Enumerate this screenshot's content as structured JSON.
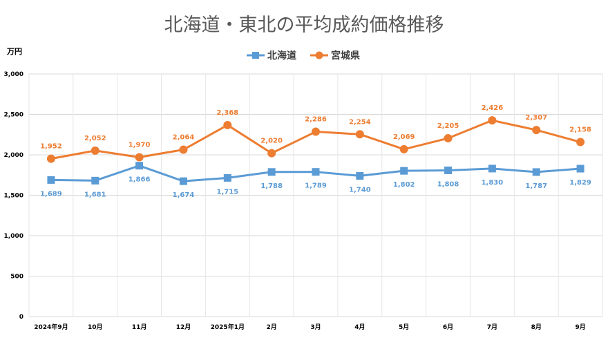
{
  "chart_data": {
    "type": "line",
    "title": "北海道・東北の平均成約価格推移",
    "ylabel": "万円",
    "xlabel": "",
    "ylim": [
      0,
      3000
    ],
    "yticks": [
      0,
      500,
      1000,
      1500,
      2000,
      2500,
      3000
    ],
    "ytick_labels": [
      "0",
      "500",
      "1,000",
      "1,500",
      "2,000",
      "2,500",
      "3,000"
    ],
    "legend_position": "top-center",
    "grid": true,
    "categories": [
      "2024年9月",
      "10月",
      "11月",
      "12月",
      "2025年1月",
      "2月",
      "3月",
      "4月",
      "5月",
      "6月",
      "7月",
      "8月",
      "9月"
    ],
    "series": [
      {
        "name": "北海道",
        "color": "#5b9bd5",
        "marker": "square",
        "values": [
          1689,
          1681,
          1866,
          1674,
          1715,
          1788,
          1789,
          1740,
          1802,
          1808,
          1830,
          1787,
          1829
        ],
        "labels": [
          "1,689",
          "1,681",
          "1,866",
          "1,674",
          "1,715",
          "1,788",
          "1,789",
          "1,740",
          "1,802",
          "1,808",
          "1,830",
          "1,787",
          "1,829"
        ]
      },
      {
        "name": "宮城県",
        "color": "#ed7d31",
        "marker": "circle",
        "values": [
          1952,
          2052,
          1970,
          2064,
          2368,
          2020,
          2286,
          2254,
          2069,
          2205,
          2426,
          2307,
          2158
        ],
        "labels": [
          "1,952",
          "2,052",
          "1,970",
          "2,064",
          "2,368",
          "2,020",
          "2,286",
          "2,254",
          "2,069",
          "2,205",
          "2,426",
          "2,307",
          "2,158"
        ]
      }
    ]
  }
}
